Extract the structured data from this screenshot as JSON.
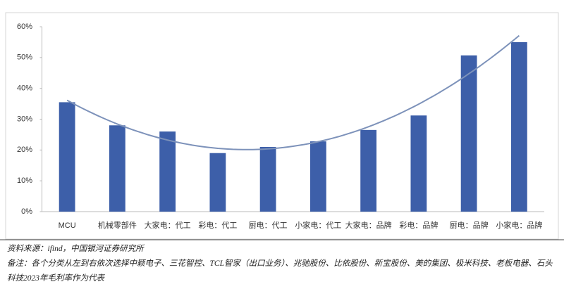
{
  "chart_data": {
    "type": "bar",
    "categories": [
      "MCU",
      "机械零部件",
      "大家电：代工",
      "彩电：代工",
      "厨电：代工",
      "小家电：代工",
      "大家电：品牌",
      "彩电：品牌",
      "厨电：品牌",
      "小家电：品牌"
    ],
    "values": [
      35.5,
      28,
      26,
      19,
      21,
      22.8,
      26.5,
      31.2,
      50.7,
      55
    ],
    "color": "#3d5fa9",
    "trendline": {
      "type": "polynomial",
      "order": 2,
      "color": "#7d92ba"
    },
    "ylim": [
      0,
      60
    ],
    "yticks": [
      {
        "value": 0,
        "label": "0%"
      },
      {
        "value": 10,
        "label": "10%"
      },
      {
        "value": 20,
        "label": "20%"
      },
      {
        "value": 30,
        "label": "30%"
      },
      {
        "value": 40,
        "label": "40%"
      },
      {
        "value": 50,
        "label": "50%"
      },
      {
        "value": 60,
        "label": "60%"
      }
    ],
    "grid": false
  },
  "notes": [
    "资料来源：ifind，中国银河证券研究所",
    "备注：各个分类从左到右依次选择中颖电子、三花智控、TCL智家（出口业务）、兆驰股份、比依股份、新宝股份、美的集团、极米科技、老板电器、石头科技2023年毛利率作为代表"
  ]
}
